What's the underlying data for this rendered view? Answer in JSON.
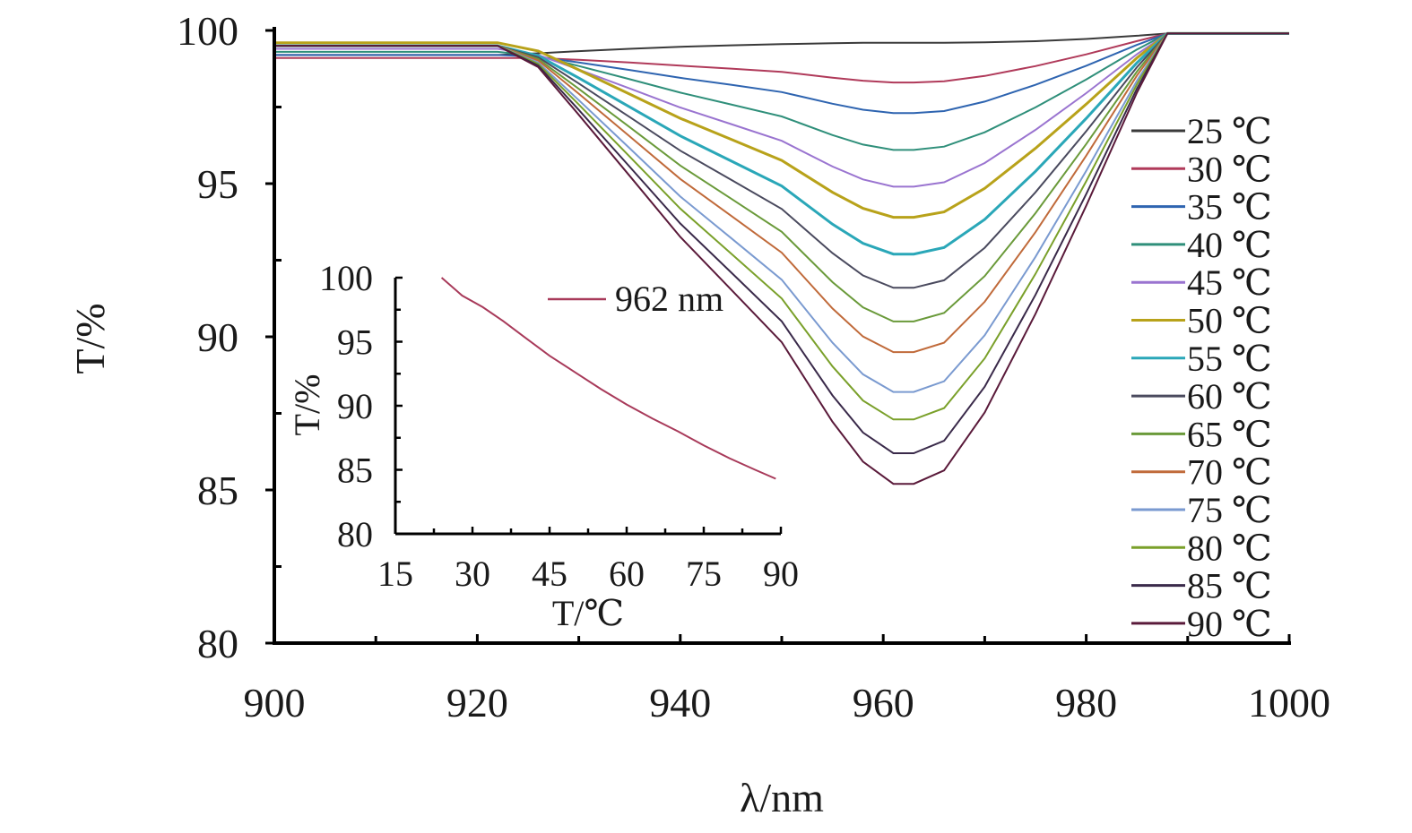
{
  "chart_data": {
    "main": {
      "type": "line",
      "xlabel": "λ/nm",
      "ylabel": "T/%",
      "xlim": [
        900,
        1000
      ],
      "ylim": [
        80,
        100
      ],
      "xticks": [
        900,
        920,
        940,
        960,
        980,
        1000
      ],
      "xtick_labels": [
        "900",
        "920",
        "940",
        "960",
        "980",
        "1000"
      ],
      "yticks": [
        80,
        85,
        90,
        95,
        100
      ],
      "ytick_labels": [
        "80",
        "85",
        "90",
        "95",
        "100"
      ],
      "legend_position": "right",
      "x_shape": [
        900,
        922,
        926,
        930,
        935,
        940,
        945,
        950,
        955,
        958,
        961,
        963,
        966,
        970,
        975,
        980,
        985,
        988,
        990,
        995,
        1000
      ],
      "series": [
        {
          "name": "25 ℃",
          "color": "#3a3a3a",
          "min": 99.6,
          "plateau": 99.2
        },
        {
          "name": "30 ℃",
          "color": "#b03a5a",
          "min": 98.3,
          "plateau": 99.1
        },
        {
          "name": "35 ℃",
          "color": "#2e64b0",
          "min": 97.3,
          "plateau": 99.2
        },
        {
          "name": "40 ℃",
          "color": "#2f8f7a",
          "min": 96.1,
          "plateau": 99.3
        },
        {
          "name": "45 ℃",
          "color": "#9a74d0",
          "min": 94.9,
          "plateau": 99.4
        },
        {
          "name": "50 ℃",
          "color": "#b8a21a",
          "min": 93.9,
          "plateau": 99.6
        },
        {
          "name": "55 ℃",
          "color": "#2aa7b8",
          "min": 92.7,
          "plateau": 99.5
        },
        {
          "name": "60 ℃",
          "color": "#4a4a5e",
          "min": 91.6,
          "plateau": 99.5
        },
        {
          "name": "65 ℃",
          "color": "#6a9a3a",
          "min": 90.5,
          "plateau": 99.5
        },
        {
          "name": "70 ℃",
          "color": "#c06a3a",
          "min": 89.5,
          "plateau": 99.5
        },
        {
          "name": "75 ℃",
          "color": "#7a9ad0",
          "min": 88.2,
          "plateau": 99.5
        },
        {
          "name": "80 ℃",
          "color": "#7aa02a",
          "min": 87.3,
          "plateau": 99.5
        },
        {
          "name": "85 ℃",
          "color": "#3a2a4a",
          "min": 86.2,
          "plateau": 99.5
        },
        {
          "name": "90 ℃",
          "color": "#5a1a3a",
          "min": 85.2,
          "plateau": 99.5
        }
      ]
    },
    "inset": {
      "type": "line",
      "xlabel": "T/℃",
      "ylabel": "T/%",
      "xlim": [
        15,
        90
      ],
      "ylim": [
        80,
        100
      ],
      "xticks": [
        15,
        30,
        45,
        60,
        75,
        90
      ],
      "xtick_labels": [
        "15",
        "30",
        "45",
        "60",
        "75",
        "90"
      ],
      "yticks": [
        80,
        85,
        90,
        95,
        100
      ],
      "ytick_labels": [
        "80",
        "85",
        "90",
        "95",
        "100"
      ],
      "series": [
        {
          "name": "962 nm",
          "color": "#a83a5a",
          "x": [
            24,
            28,
            32,
            36,
            40,
            45,
            50,
            55,
            60,
            65,
            70,
            75,
            80,
            85,
            89
          ],
          "y": [
            100,
            98.6,
            97.7,
            96.6,
            95.4,
            93.9,
            92.6,
            91.3,
            90.1,
            89.0,
            88.0,
            86.9,
            85.9,
            85.0,
            84.3
          ]
        }
      ]
    }
  }
}
